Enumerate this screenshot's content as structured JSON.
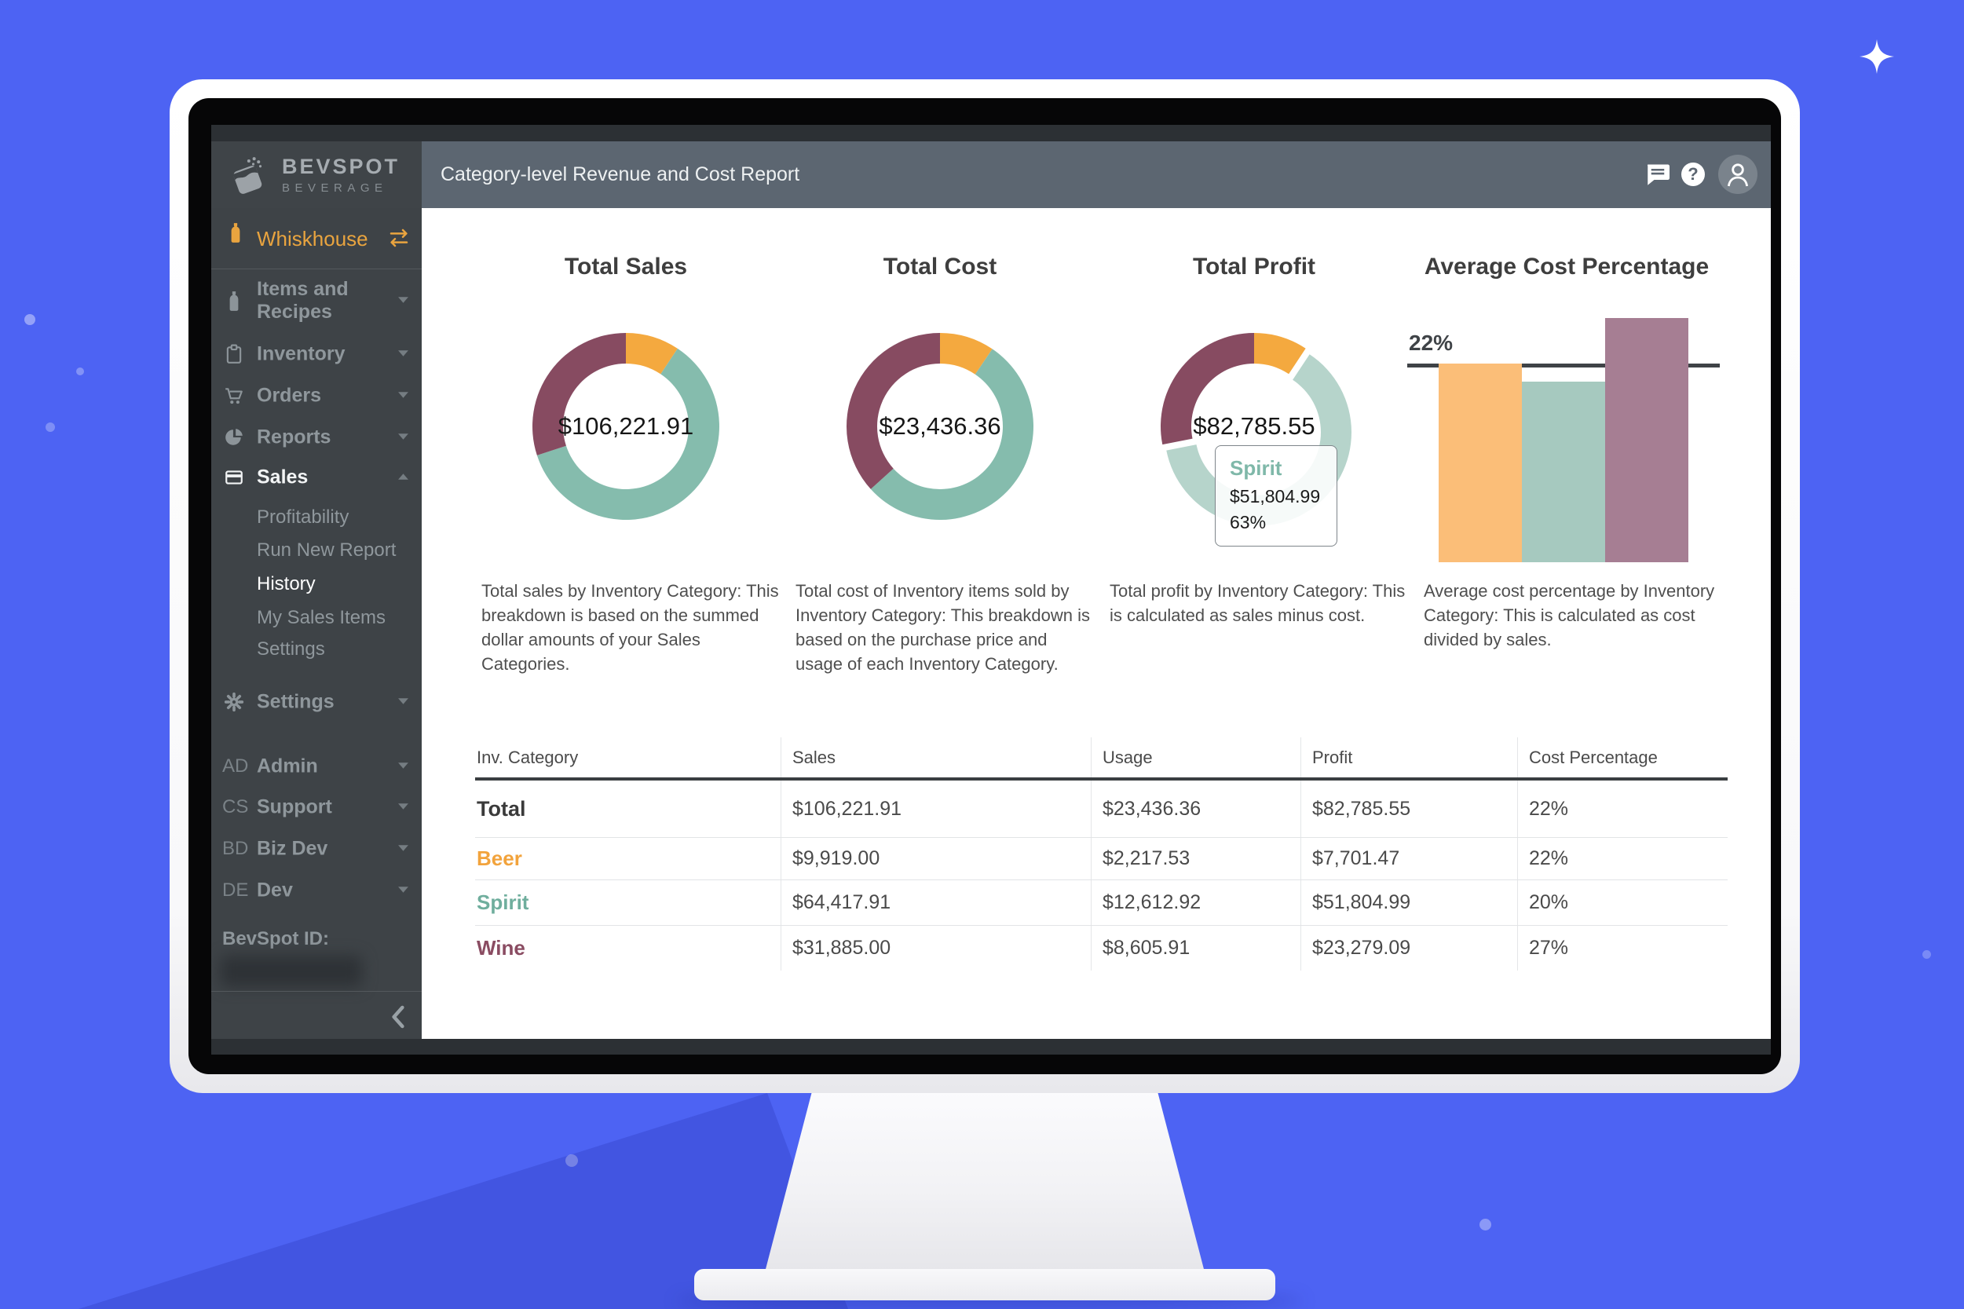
{
  "brand": {
    "name": "BEVSPOT",
    "tagline": "BEVERAGE"
  },
  "header": {
    "title": "Category-level Revenue and Cost Report",
    "icons": [
      "chat-icon",
      "help-icon",
      "user-avatar"
    ]
  },
  "sidebar": {
    "workspace": {
      "label": "Whiskhouse",
      "icon": "bottle",
      "action_icon": "swap-arrows"
    },
    "items": [
      {
        "id": "items-recipes",
        "icon": "bottle",
        "label": "Items and Recipes",
        "chevron": "down",
        "active": false
      },
      {
        "id": "inventory",
        "icon": "clipboard",
        "label": "Inventory",
        "chevron": "down",
        "active": false
      },
      {
        "id": "orders",
        "icon": "cart",
        "label": "Orders",
        "chevron": "down",
        "active": false
      },
      {
        "id": "reports",
        "icon": "pie",
        "label": "Reports",
        "chevron": "down",
        "active": false
      },
      {
        "id": "sales",
        "icon": "card",
        "label": "Sales",
        "chevron": "up",
        "active": true
      }
    ],
    "sales_submenu": [
      {
        "label": "Profitability",
        "active": false
      },
      {
        "label": "Run New Report",
        "active": false
      },
      {
        "label": "History",
        "active": true
      },
      {
        "label": "My Sales Items",
        "active": false
      },
      {
        "label": "Settings",
        "active": false
      }
    ],
    "settings_item": {
      "icon": "gear",
      "label": "Settings",
      "chevron": "down"
    },
    "admin_items": [
      {
        "abbr": "AD",
        "label": "Admin",
        "chevron": "down"
      },
      {
        "abbr": "CS",
        "label": "Support",
        "chevron": "down"
      },
      {
        "abbr": "BD",
        "label": "Biz Dev",
        "chevron": "down"
      },
      {
        "abbr": "DE",
        "label": "Dev",
        "chevron": "down"
      }
    ],
    "bevspot_id_label": "BevSpot ID:",
    "collapse_icon": "chevron-left"
  },
  "cards": [
    {
      "title": "Total Sales",
      "center_value": "$106,221.91",
      "description": "Total sales by Inventory Category: This breakdown is based on the summed dollar amounts of your Sales Categories."
    },
    {
      "title": "Total Cost",
      "center_value": "$23,436.36",
      "description": "Total cost of Inventory items sold by Inventory Category: This breakdown is based on the purchase price and usage of each Inventory Category."
    },
    {
      "title": "Total Profit",
      "center_value": "$82,785.55",
      "description": "Total profit by Inventory Category: This is calculated as sales minus cost."
    },
    {
      "title": "Average Cost Percentage",
      "description": "Average cost percentage by Inventory Category: This is calculated as cost divided by sales."
    }
  ],
  "tooltip": {
    "label": "Spirit",
    "value": "$51,804.99",
    "percent": "63%"
  },
  "chart_data": [
    {
      "type": "pie",
      "title": "Total Sales",
      "categories": [
        "Beer",
        "Spirit",
        "Wine"
      ],
      "values": [
        9919.0,
        64417.91,
        31885.0
      ],
      "center_label": "$106,221.91",
      "legend": "none"
    },
    {
      "type": "pie",
      "title": "Total Cost",
      "categories": [
        "Beer",
        "Spirit",
        "Wine"
      ],
      "values": [
        2217.53,
        12612.92,
        8605.91
      ],
      "center_label": "$23,436.36",
      "legend": "none"
    },
    {
      "type": "pie",
      "title": "Total Profit",
      "categories": [
        "Beer",
        "Spirit",
        "Wine"
      ],
      "values": [
        7701.47,
        51804.99,
        23279.09
      ],
      "center_label": "$82,785.55",
      "highlight": "Spirit",
      "legend": "none"
    },
    {
      "type": "bar",
      "title": "Average Cost Percentage",
      "categories": [
        "Beer",
        "Spirit",
        "Wine"
      ],
      "values": [
        22,
        20,
        27
      ],
      "average_line": 22,
      "average_label": "22%",
      "ylim": [
        0,
        27
      ],
      "grid": false
    }
  ],
  "table": {
    "headers": [
      "Inv. Category",
      "Sales",
      "Usage",
      "Profit",
      "Cost Percentage"
    ],
    "rows": [
      {
        "category": "Total",
        "sales": "$106,221.91",
        "usage": "$23,436.36",
        "profit": "$82,785.55",
        "cost_pct": "22%",
        "color": "total"
      },
      {
        "category": "Beer",
        "sales": "$9,919.00",
        "usage": "$2,217.53",
        "profit": "$7,701.47",
        "cost_pct": "22%",
        "color": "beer"
      },
      {
        "category": "Spirit",
        "sales": "$64,417.91",
        "usage": "$12,612.92",
        "profit": "$51,804.99",
        "cost_pct": "20%",
        "color": "spirit"
      },
      {
        "category": "Wine",
        "sales": "$31,885.00",
        "usage": "$8,605.91",
        "profit": "$23,279.09",
        "cost_pct": "27%",
        "color": "wine"
      }
    ]
  },
  "colors": {
    "beer": "#F4A93F",
    "spirit": "#85BCAD",
    "wine": "#874B61",
    "spirit_faded": "#B6D4CB",
    "bar_beer": "#FBBE78",
    "bar_spirit": "#A6C9BF",
    "bar_wine": "#A67E93",
    "table_total": "#3A3A3A",
    "table_beer": "#F2A33C",
    "table_spirit": "#6FAE9D",
    "table_wine": "#8A4C62",
    "background": "#4D63F3",
    "accent_orange": "#E9A43F"
  }
}
